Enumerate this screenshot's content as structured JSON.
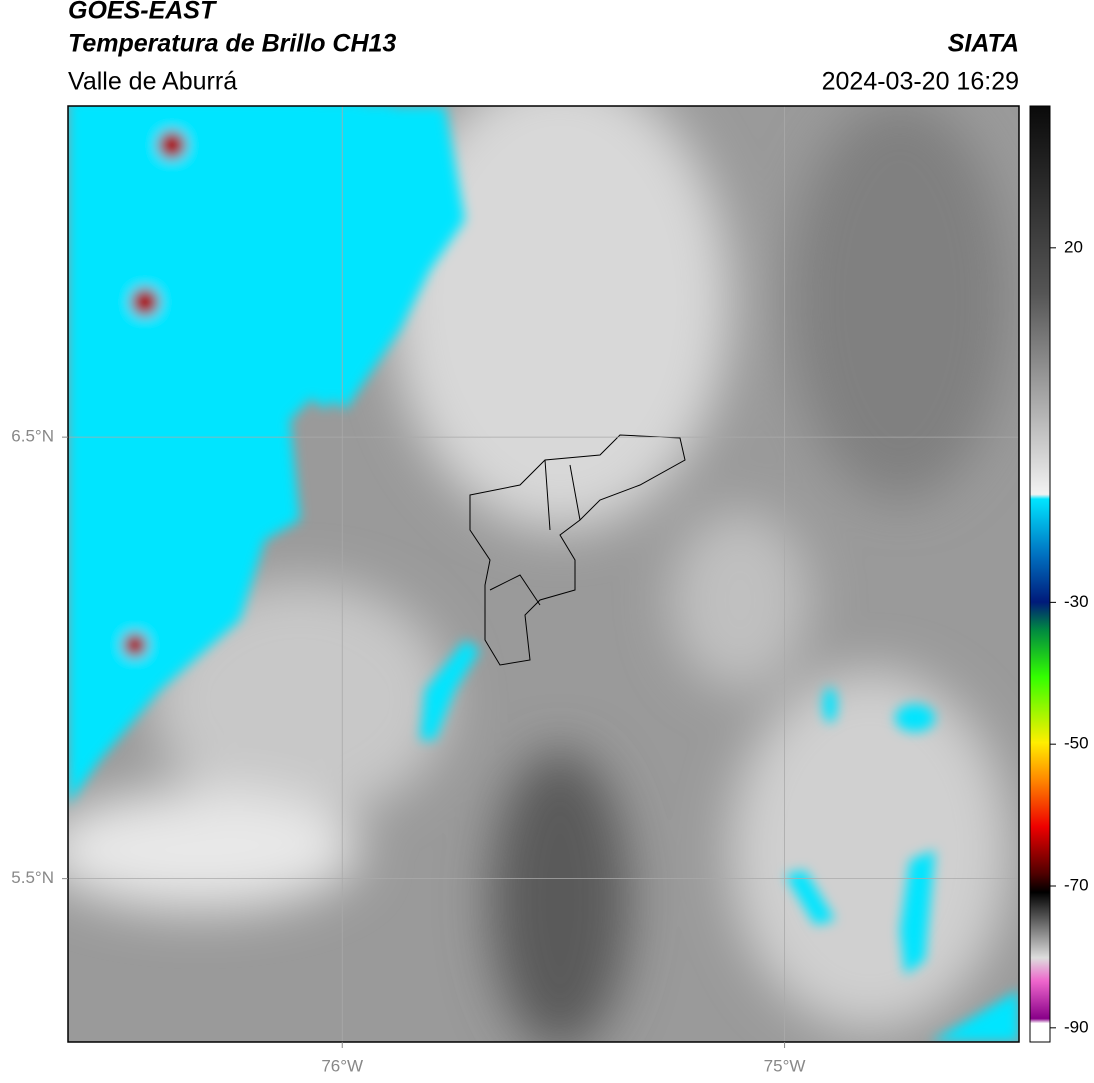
{
  "header": {
    "satellite": "GOES-EAST",
    "product": "Temperatura de Brillo CH13",
    "region": "Valle de Aburrá",
    "source": "SIATA",
    "datetime": "2024-03-20 16:29"
  },
  "map": {
    "xlim": [
      -76.62,
      -74.47
    ],
    "ylim": [
      5.13,
      7.25
    ],
    "xticks": [
      {
        "value": -76,
        "label": "76°W"
      },
      {
        "value": -75,
        "label": "75°W"
      }
    ],
    "yticks": [
      {
        "value": 6.5,
        "label": "6.5°N"
      },
      {
        "value": 5.5,
        "label": "5.5°N"
      }
    ],
    "grid": true
  },
  "colorbar": {
    "lim": [
      -92,
      40
    ],
    "ticks": [
      20,
      -30,
      -50,
      -70,
      -90
    ]
  }
}
